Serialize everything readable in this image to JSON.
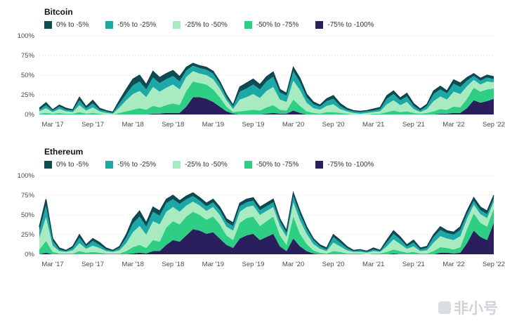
{
  "watermark": {
    "text": "非小号"
  },
  "chart_data": [
    {
      "type": "area",
      "title": "Bitcoin",
      "ylim": [
        0,
        100
      ],
      "grid": "dotted-horizontal",
      "legend_position": "top",
      "stacking": "last-series-at-bottom",
      "outline_color": "#0b434c",
      "y_ticks": [
        "100%",
        "75%",
        "50%",
        "25%",
        "0%"
      ],
      "x_ticks": [
        {
          "i": 2,
          "label": "Mar '17"
        },
        {
          "i": 8,
          "label": "Sep '17"
        },
        {
          "i": 14,
          "label": "Mar '18"
        },
        {
          "i": 20,
          "label": "Sep '18"
        },
        {
          "i": 26,
          "label": "Mar '19"
        },
        {
          "i": 32,
          "label": "Sep '19"
        },
        {
          "i": 38,
          "label": "Mar '20"
        },
        {
          "i": 44,
          "label": "Sep '20"
        },
        {
          "i": 50,
          "label": "Mar '21"
        },
        {
          "i": 56,
          "label": "Sep '21"
        },
        {
          "i": 62,
          "label": "Mar '22"
        },
        {
          "i": 68,
          "label": "Sep '22"
        }
      ],
      "x_range_note": "monthly points Jan 2017 - Sep 2022, values are % of supply",
      "series": [
        {
          "name": "0% to -5%",
          "color": "#0e4d54",
          "values": [
            2,
            3,
            1,
            2,
            2,
            1,
            4,
            2,
            4,
            2,
            1,
            1,
            4,
            6,
            8,
            8,
            6,
            8,
            7,
            7,
            7,
            6,
            4,
            3,
            3,
            3,
            3,
            3,
            3,
            2,
            6,
            7,
            7,
            6,
            6,
            6,
            4,
            3,
            5,
            5,
            4,
            3,
            2,
            3,
            4,
            3,
            2,
            1,
            1,
            1,
            2,
            2,
            4,
            4,
            3,
            4,
            3,
            2,
            2,
            4,
            4,
            3,
            5,
            5,
            4,
            3,
            3,
            3,
            3
          ]
        },
        {
          "name": "-5% to -25%",
          "color": "#1da8a8",
          "values": [
            2,
            4,
            2,
            3,
            2,
            2,
            6,
            3,
            5,
            2,
            2,
            1,
            5,
            8,
            11,
            12,
            10,
            12,
            11,
            11,
            11,
            10,
            8,
            7,
            7,
            7,
            7,
            6,
            4,
            3,
            10,
            11,
            12,
            11,
            12,
            13,
            9,
            8,
            12,
            10,
            7,
            5,
            4,
            6,
            7,
            4,
            2,
            2,
            2,
            2,
            2,
            3,
            7,
            8,
            6,
            7,
            4,
            2,
            4,
            9,
            9,
            8,
            10,
            9,
            7,
            5,
            5,
            5,
            4
          ]
        },
        {
          "name": "-25% to -50%",
          "color": "#a9ebc0",
          "values": [
            3,
            6,
            2,
            5,
            3,
            2,
            9,
            4,
            7,
            3,
            2,
            1,
            7,
            14,
            20,
            22,
            16,
            24,
            20,
            22,
            24,
            20,
            18,
            13,
            12,
            12,
            13,
            11,
            8,
            4,
            15,
            17,
            20,
            16,
            21,
            23,
            13,
            11,
            24,
            20,
            11,
            6,
            5,
            8,
            10,
            5,
            3,
            2,
            1,
            2,
            2,
            3,
            10,
            13,
            9,
            12,
            5,
            2,
            5,
            13,
            16,
            13,
            19,
            17,
            16,
            10,
            9,
            10,
            8
          ]
        },
        {
          "name": "-50% to -75%",
          "color": "#2fce85",
          "values": [
            1,
            2,
            1,
            2,
            1,
            1,
            3,
            1,
            2,
            1,
            0,
            0,
            2,
            4,
            6,
            8,
            6,
            10,
            8,
            10,
            12,
            10,
            20,
            20,
            18,
            18,
            16,
            12,
            6,
            2,
            4,
            5,
            6,
            5,
            8,
            10,
            5,
            4,
            14,
            9,
            4,
            2,
            1,
            3,
            3,
            2,
            1,
            0,
            0,
            0,
            1,
            1,
            3,
            5,
            3,
            4,
            2,
            1,
            2,
            4,
            6,
            5,
            8,
            7,
            12,
            16,
            14,
            15,
            13
          ]
        },
        {
          "name": "-75% to -100%",
          "color": "#2a1e5c",
          "values": [
            0,
            0,
            0,
            0,
            0,
            0,
            0,
            0,
            0,
            0,
            0,
            0,
            0,
            0,
            0,
            0,
            0,
            1,
            1,
            2,
            2,
            2,
            10,
            22,
            22,
            20,
            16,
            10,
            4,
            1,
            0,
            0,
            0,
            0,
            1,
            2,
            1,
            1,
            5,
            2,
            0,
            0,
            0,
            0,
            0,
            0,
            0,
            0,
            0,
            0,
            0,
            0,
            0,
            0,
            0,
            0,
            0,
            0,
            0,
            0,
            1,
            1,
            2,
            2,
            8,
            18,
            15,
            17,
            20
          ]
        }
      ]
    },
    {
      "type": "area",
      "title": "Ethereum",
      "ylim": [
        0,
        100
      ],
      "grid": "dotted-horizontal",
      "legend_position": "top",
      "stacking": "last-series-at-bottom",
      "outline_color": "#0b434c",
      "y_ticks": [
        "100%",
        "75%",
        "50%",
        "25%",
        "0%"
      ],
      "x_ticks": [
        {
          "i": 2,
          "label": "Mar '17"
        },
        {
          "i": 8,
          "label": "Sep '17"
        },
        {
          "i": 14,
          "label": "Mar '18"
        },
        {
          "i": 20,
          "label": "Sep '18"
        },
        {
          "i": 26,
          "label": "Mar '19"
        },
        {
          "i": 32,
          "label": "Sep '19"
        },
        {
          "i": 38,
          "label": "Mar '20"
        },
        {
          "i": 44,
          "label": "Sep '20"
        },
        {
          "i": 50,
          "label": "Mar '21"
        },
        {
          "i": 56,
          "label": "Sep '21"
        },
        {
          "i": 62,
          "label": "Mar '22"
        },
        {
          "i": 68,
          "label": "Sep '22"
        }
      ],
      "x_range_note": "monthly points Jan 2017 - Sep 2022, values are % of supply",
      "series": [
        {
          "name": "0% to -5%",
          "color": "#0e4d54",
          "values": [
            5,
            8,
            3,
            2,
            1,
            2,
            4,
            2,
            3,
            3,
            2,
            1,
            2,
            4,
            6,
            7,
            5,
            6,
            6,
            5,
            5,
            4,
            4,
            4,
            4,
            4,
            4,
            4,
            4,
            4,
            4,
            4,
            4,
            4,
            4,
            4,
            3,
            3,
            4,
            4,
            3,
            2,
            2,
            2,
            3,
            3,
            2,
            1,
            1,
            1,
            2,
            1,
            3,
            4,
            3,
            2,
            3,
            2,
            2,
            3,
            4,
            3,
            3,
            4,
            4,
            4,
            4,
            4,
            4
          ]
        },
        {
          "name": "-5% to -25%",
          "color": "#1da8a8",
          "values": [
            9,
            15,
            6,
            2,
            1,
            3,
            7,
            3,
            6,
            4,
            2,
            1,
            3,
            7,
            11,
            12,
            10,
            12,
            11,
            11,
            10,
            10,
            8,
            7,
            6,
            6,
            6,
            6,
            6,
            6,
            7,
            6,
            6,
            6,
            6,
            6,
            6,
            5,
            8,
            8,
            6,
            5,
            3,
            2,
            7,
            5,
            3,
            1,
            2,
            1,
            2,
            1,
            5,
            7,
            6,
            3,
            5,
            2,
            3,
            7,
            8,
            7,
            7,
            8,
            6,
            5,
            5,
            5,
            4
          ]
        },
        {
          "name": "-25% to -50%",
          "color": "#a9ebc0",
          "values": [
            15,
            30,
            8,
            3,
            2,
            4,
            10,
            5,
            8,
            6,
            3,
            2,
            4,
            10,
            19,
            24,
            17,
            24,
            22,
            20,
            18,
            16,
            14,
            13,
            12,
            11,
            12,
            12,
            11,
            12,
            14,
            14,
            14,
            14,
            13,
            12,
            12,
            10,
            18,
            17,
            13,
            8,
            5,
            3,
            11,
            7,
            4,
            2,
            2,
            2,
            3,
            2,
            7,
            13,
            9,
            5,
            7,
            3,
            4,
            11,
            14,
            12,
            12,
            14,
            13,
            11,
            11,
            11,
            9
          ]
        },
        {
          "name": "-50% to -75%",
          "color": "#2fce85",
          "values": [
            6,
            15,
            3,
            1,
            1,
            1,
            4,
            2,
            3,
            2,
            1,
            1,
            1,
            4,
            8,
            10,
            7,
            14,
            12,
            22,
            24,
            22,
            24,
            22,
            20,
            18,
            20,
            18,
            12,
            10,
            20,
            22,
            22,
            18,
            20,
            22,
            14,
            8,
            28,
            16,
            9,
            4,
            2,
            1,
            4,
            3,
            1,
            1,
            1,
            0,
            1,
            1,
            3,
            5,
            4,
            2,
            3,
            1,
            1,
            4,
            7,
            6,
            5,
            7,
            18,
            22,
            18,
            17,
            18
          ]
        },
        {
          "name": "-75% to -100%",
          "color": "#2a1e5c",
          "values": [
            0,
            2,
            0,
            0,
            0,
            0,
            0,
            0,
            0,
            0,
            0,
            0,
            0,
            0,
            1,
            2,
            1,
            4,
            4,
            12,
            18,
            16,
            24,
            32,
            30,
            26,
            28,
            20,
            12,
            8,
            20,
            24,
            26,
            18,
            22,
            26,
            10,
            4,
            20,
            10,
            4,
            1,
            0,
            0,
            0,
            0,
            0,
            0,
            0,
            0,
            0,
            0,
            0,
            1,
            0,
            0,
            0,
            0,
            0,
            0,
            2,
            2,
            1,
            2,
            14,
            30,
            22,
            18,
            40
          ]
        }
      ]
    }
  ]
}
